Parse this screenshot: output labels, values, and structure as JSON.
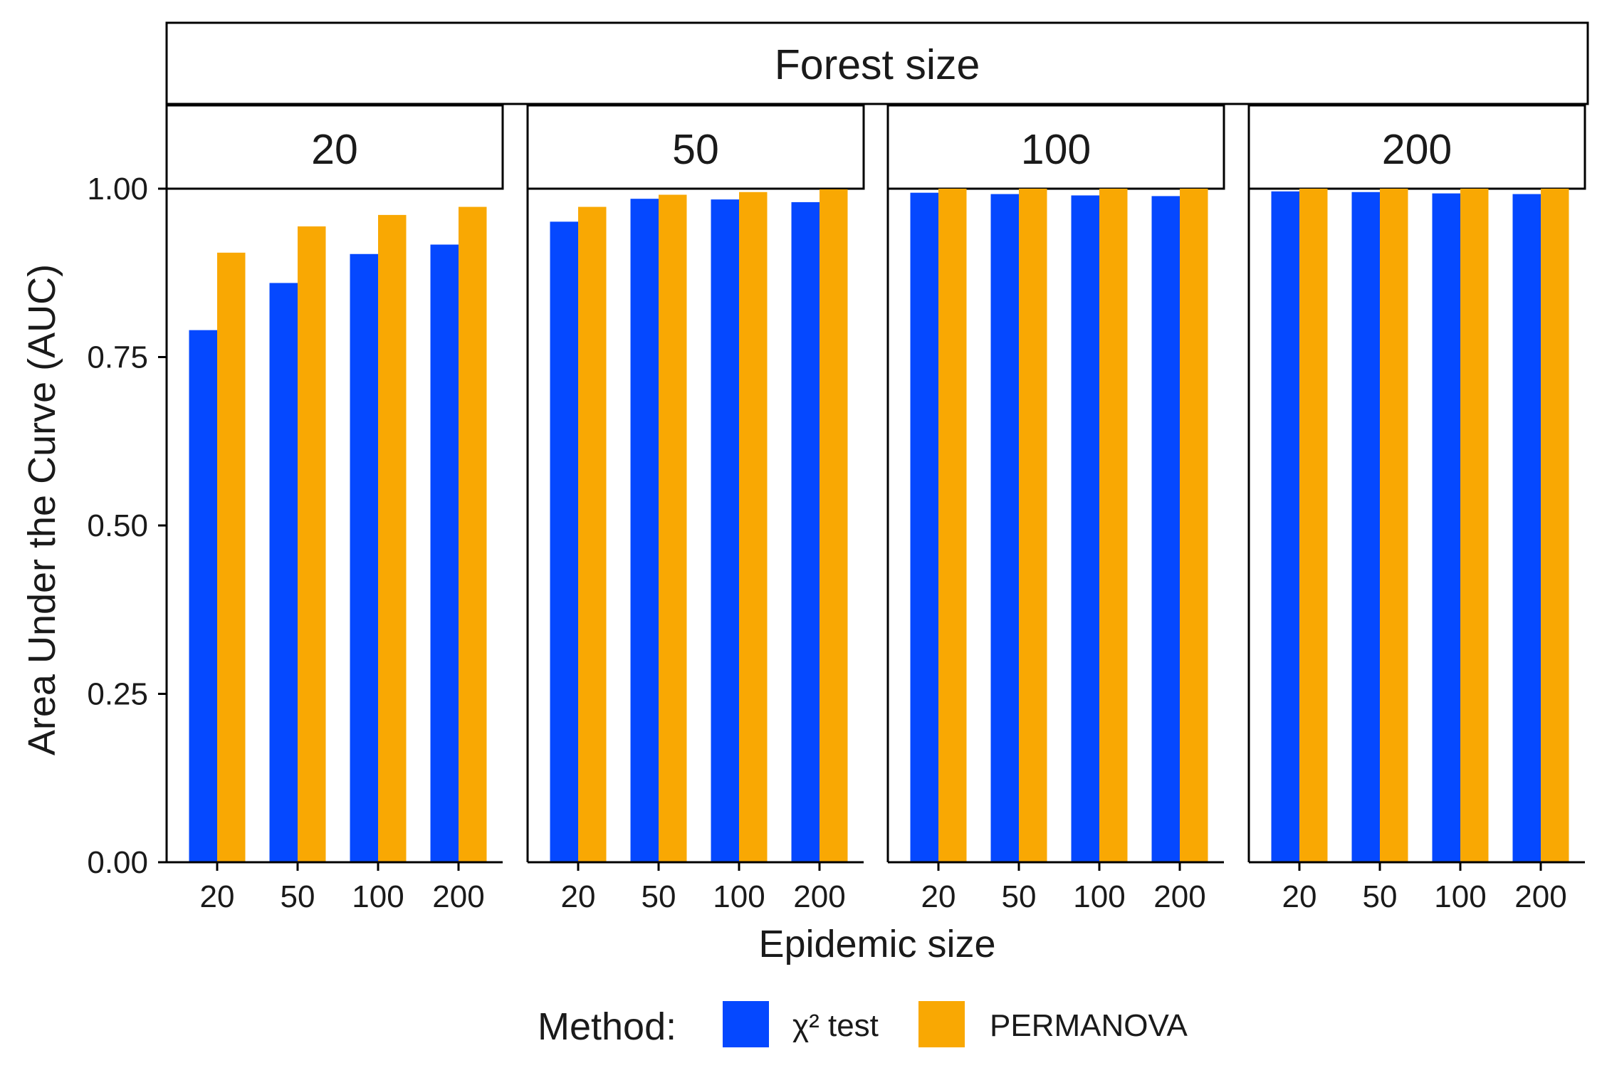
{
  "chart_data": {
    "type": "bar",
    "facet_title": "Forest size",
    "facets": [
      "20",
      "50",
      "100",
      "200"
    ],
    "categories": [
      "20",
      "50",
      "100",
      "200"
    ],
    "xlabel": "Epidemic size",
    "ylabel": "Area Under the Curve (AUC)",
    "ylim": [
      0,
      1
    ],
    "yticks": [
      0,
      0.25,
      0.5,
      0.75,
      1.0
    ],
    "ytick_labels": [
      "0.00",
      "0.25",
      "0.50",
      "0.75",
      "1.00"
    ],
    "grid": false,
    "legend": {
      "title": "Method:",
      "position": "bottom"
    },
    "series": [
      {
        "name": "χ² test",
        "color": "#0548FF",
        "values": [
          [
            0.79,
            0.86,
            0.903,
            0.917
          ],
          [
            0.951,
            0.985,
            0.984,
            0.98
          ],
          [
            0.994,
            0.992,
            0.99,
            0.989
          ],
          [
            0.996,
            0.995,
            0.993,
            0.992
          ]
        ]
      },
      {
        "name": "PERMANOVA",
        "color": "#F9A803",
        "values": [
          [
            0.905,
            0.944,
            0.961,
            0.973
          ],
          [
            0.973,
            0.991,
            0.995,
            0.999
          ],
          [
            1.0,
            1.0,
            1.0,
            1.0
          ],
          [
            1.0,
            1.0,
            1.0,
            1.0
          ]
        ]
      }
    ]
  }
}
